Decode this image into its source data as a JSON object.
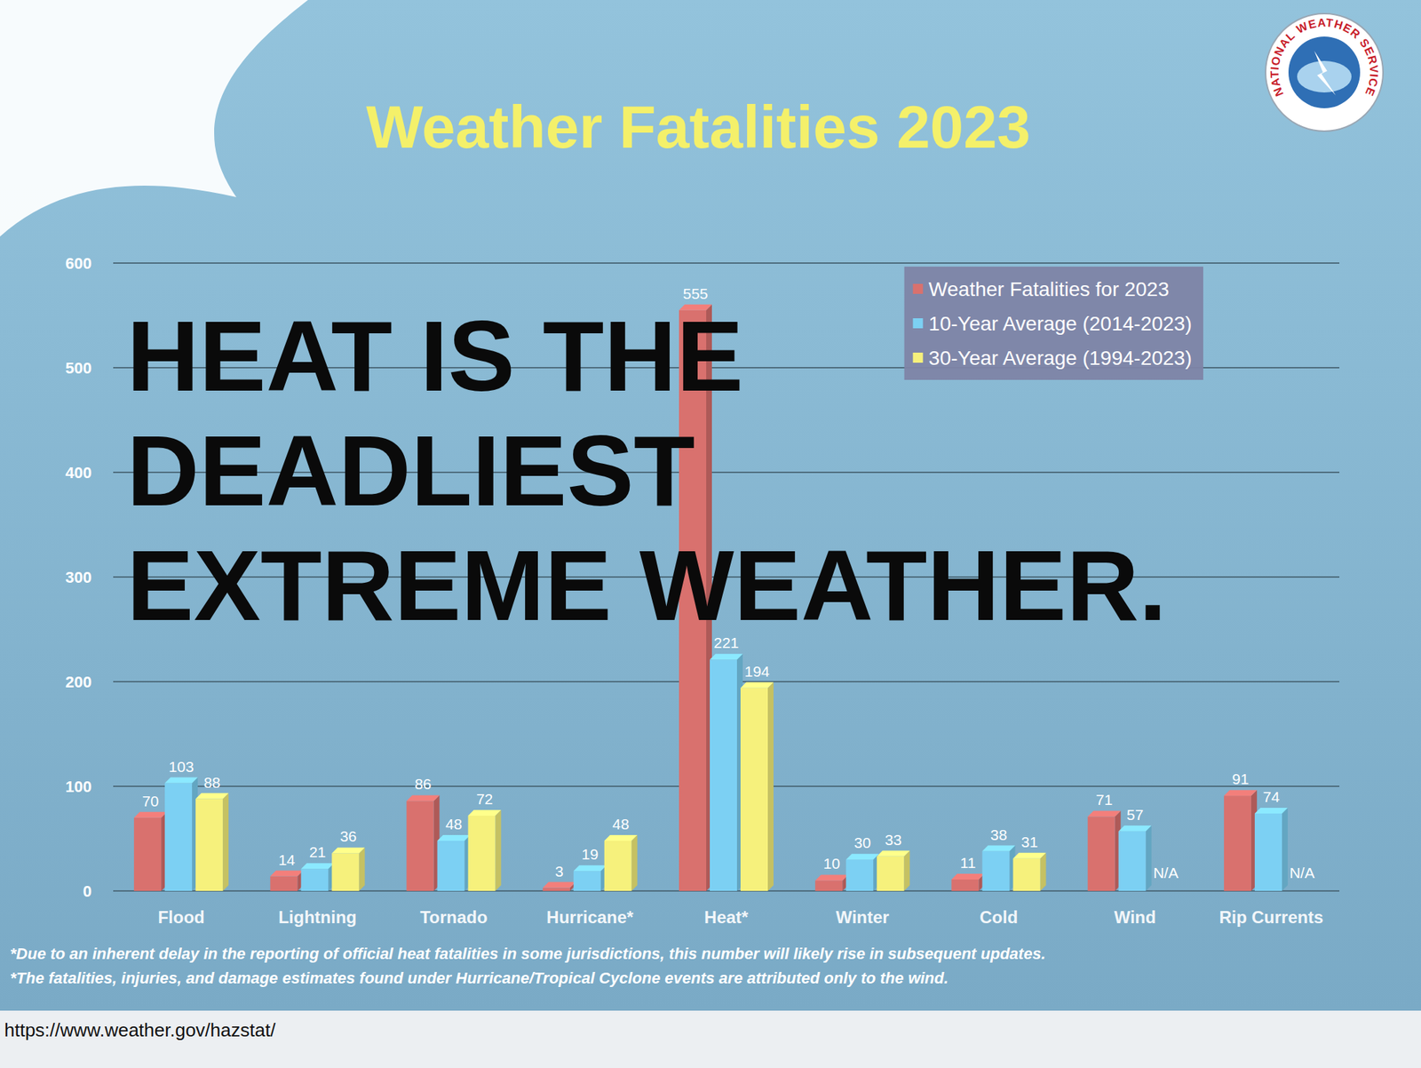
{
  "chart_data": {
    "type": "bar",
    "title": "Weather Fatalities 2023",
    "annotation": [
      "HEAT IS THE",
      "DEADLIEST",
      "EXTREME WEATHER."
    ],
    "logo_text": "NATIONAL WEATHER SERVICE",
    "categories": [
      "Flood",
      "Lightning",
      "Tornado",
      "Hurricane*",
      "Heat*",
      "Winter",
      "Cold",
      "Wind",
      "Rip Currents"
    ],
    "series": [
      {
        "name": "Weather Fatalities for 2023",
        "color": "#d9716e",
        "values": [
          70,
          14,
          86,
          3,
          555,
          10,
          11,
          71,
          91
        ]
      },
      {
        "name": "10-Year Average (2014-2023)",
        "color": "#7cd0f3",
        "values": [
          103,
          21,
          48,
          19,
          221,
          30,
          38,
          57,
          74
        ]
      },
      {
        "name": "30-Year Average (1994-2023)",
        "color": "#f6f17c",
        "values": [
          88,
          36,
          72,
          48,
          194,
          33,
          31,
          null,
          null
        ],
        "value_labels": [
          "88",
          "36",
          "72",
          "48",
          "194",
          "33",
          "31",
          "N/A",
          "N/A"
        ]
      }
    ],
    "ylim": [
      0,
      600
    ],
    "yticks": [
      0,
      100,
      200,
      300,
      400,
      500,
      600
    ],
    "grid": true,
    "legend": "upper right",
    "data_labels": true,
    "footnotes": [
      "*Due to an inherent delay in the reporting of official heat fatalities in some jurisdictions, this number will likely rise in subsequent updates.",
      "*The fatalities, injuries, and damage estimates found under Hurricane/Tropical Cyclone events are attributed only to the wind."
    ],
    "source": "https://www.weather.gov/hazstat/"
  }
}
